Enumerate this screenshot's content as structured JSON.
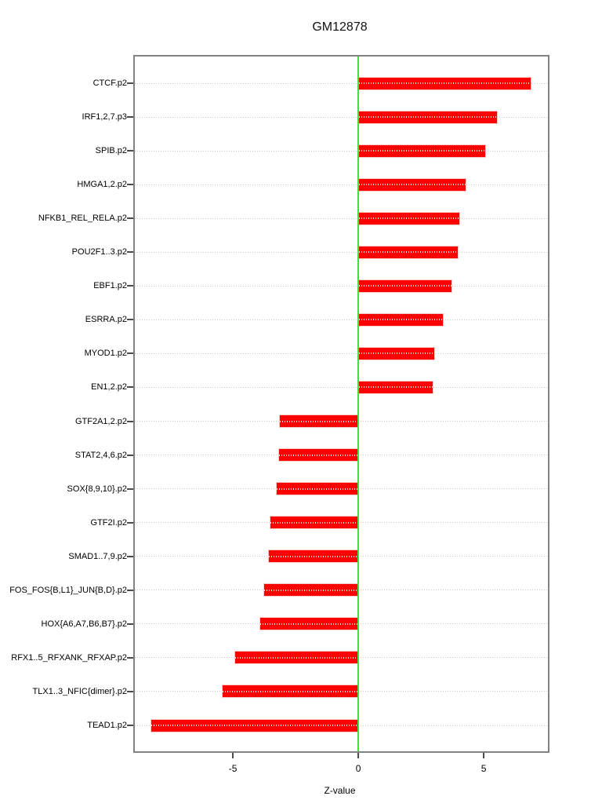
{
  "chart_data": {
    "type": "bar",
    "orientation": "horizontal",
    "title": "GM12878",
    "xlabel": "Z-value",
    "categories": [
      "CTCF.p2",
      "IRF1,2,7.p3",
      "SPIB.p2",
      "HMGA1,2.p2",
      "NFKB1_REL_RELA.p2",
      "POU2F1..3.p2",
      "EBF1.p2",
      "ESRRA.p2",
      "MYOD1.p2",
      "EN1,2.p2",
      "GTF2A1,2.p2",
      "STAT2,4,6.p2",
      "SOX{8,9,10}.p2",
      "GTF2I.p2",
      "SMAD1..7,9.p2",
      "FOS_FOS{B,L1}_JUN{B,D}.p2",
      "HOX{A6,A7,B6,B7}.p2",
      "RFX1..5_RFXANK_RFXAP.p2",
      "TLX1..3_NFIC{dimer}.p2",
      "TEAD1.p2"
    ],
    "values": [
      6.9,
      5.55,
      5.1,
      4.3,
      4.05,
      4.0,
      3.75,
      3.4,
      3.05,
      3.0,
      -3.15,
      -3.2,
      -3.3,
      -3.55,
      -3.6,
      -3.8,
      -3.95,
      -4.95,
      -5.45,
      -8.3
    ],
    "xlim": [
      -8.91,
      7.56
    ],
    "x_ticks": [
      {
        "value": -5,
        "label": "-5"
      },
      {
        "value": 0,
        "label": "0"
      },
      {
        "value": 5,
        "label": "5"
      }
    ],
    "zero_line_at": 0,
    "grid": "horizontal dotted line per category",
    "legend": "none",
    "colors": {
      "bar": "#ff0000",
      "bar_edge": "#ffc8c8",
      "zero_line": "#3de33d",
      "gridline": "#c9c9c9",
      "box_border": "#828282",
      "text": "#000000"
    }
  }
}
